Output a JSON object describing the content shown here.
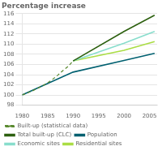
{
  "chart_data": {
    "type": "line",
    "title": "Percentage increase",
    "xlim": [
      1980,
      2006.5
    ],
    "ylim": [
      98,
      116
    ],
    "xticks": [
      1980,
      1985,
      1990,
      1995,
      2000,
      2005
    ],
    "yticks": [
      98,
      100,
      102,
      104,
      106,
      108,
      110,
      112,
      114,
      116
    ],
    "grid": "y",
    "legend": "bottom",
    "series": [
      {
        "name": "Built-up (statistical data)",
        "color": "#5a8a30",
        "line_style": "dashed",
        "x": [
          1980,
          1981,
          1982,
          1983,
          1984,
          1985,
          1986,
          1987,
          1988,
          1989,
          1990
        ],
        "values": [
          100.0,
          100.4,
          100.8,
          101.3,
          101.8,
          102.4,
          103.1,
          103.9,
          104.8,
          105.6,
          106.7
        ]
      },
      {
        "name": "Total built-up (CLC)",
        "color": "#2d6010",
        "line_style": "solid",
        "x": [
          1990,
          2000,
          2006
        ],
        "values": [
          106.7,
          112.5,
          115.7
        ]
      },
      {
        "name": "Population",
        "color": "#006070",
        "line_style": "solid",
        "x": [
          1980,
          1990,
          2000,
          2006
        ],
        "values": [
          100.0,
          104.5,
          106.8,
          108.2
        ]
      },
      {
        "name": "Economic sites",
        "color": "#88ddcc",
        "line_style": "solid",
        "x": [
          1990,
          2000,
          2006
        ],
        "values": [
          106.7,
          110.2,
          112.5
        ]
      },
      {
        "name": "Residential sites",
        "color": "#aadd44",
        "line_style": "solid",
        "x": [
          1990,
          2000,
          2006
        ],
        "values": [
          106.7,
          108.8,
          110.5
        ]
      }
    ]
  }
}
